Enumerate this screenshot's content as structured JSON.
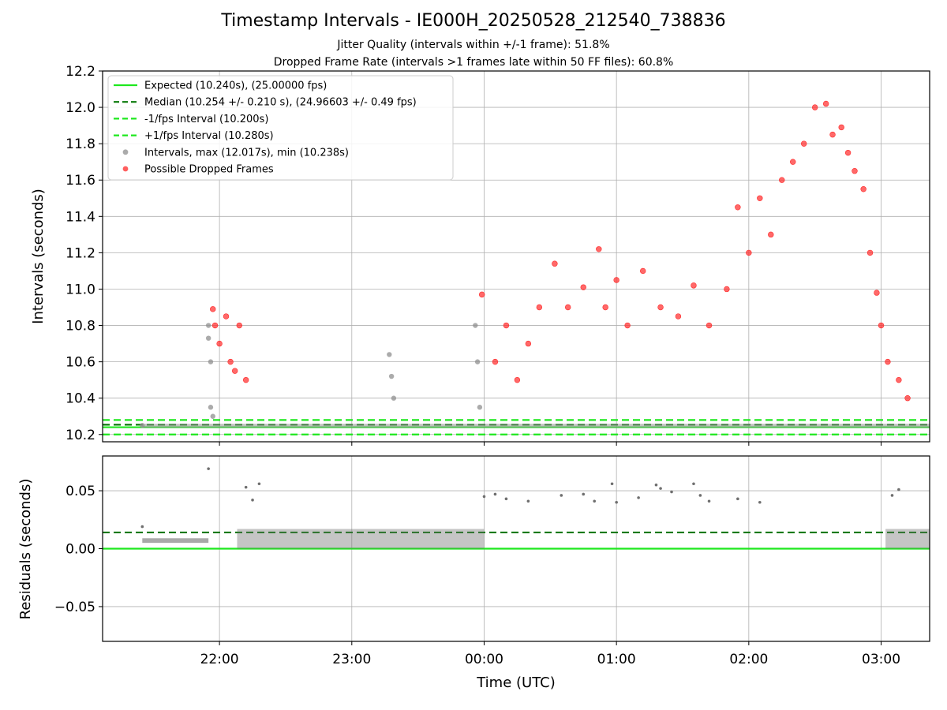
{
  "title": "Timestamp Intervals - IE000H_20250528_212540_738836",
  "subtitle_1": "Jitter Quality (intervals within +/-1 frame): 51.8%",
  "subtitle_2": "Dropped Frame Rate (intervals >1 frames late within 50 FF files): 60.8%",
  "colors": {
    "expected": "#1ee81e",
    "median": "#0a7a0a",
    "intervals": "#8f8f8f",
    "dropped": "#ff2a2a",
    "residuals": "#6f6f6f"
  },
  "chart_data": [
    {
      "type": "scatter",
      "xlabel": "",
      "ylabel": "Intervals (seconds)",
      "xlim": [
        "21:07",
        "03:22"
      ],
      "ylim": [
        10.16,
        12.2
      ],
      "yticks": [
        "10.2",
        "10.4",
        "10.6",
        "10.8",
        "11.0",
        "11.2",
        "11.4",
        "11.6",
        "11.8",
        "12.0",
        "12.2"
      ],
      "grid": true,
      "legend_position": "top-left",
      "legend": [
        "Expected (10.240s), (25.00000 fps)",
        "Median (10.254 +/- 0.210 s), (24.96603 +/- 0.49 fps)",
        "-1/fps Interval (10.200s)",
        "+1/fps Interval (10.280s)",
        "Intervals, max (12.017s), min (10.238s)",
        "Possible Dropped Frames"
      ],
      "reference_lines": [
        {
          "name": "Expected",
          "y": 10.24
        },
        {
          "name": "Median",
          "y": 10.254
        },
        {
          "name": "-1/fps Interval",
          "y": 10.2
        },
        {
          "name": "+1/fps Interval",
          "y": 10.28
        }
      ],
      "series": [
        {
          "name": "Intervals",
          "time": [
            "21:25",
            "21:55",
            "21:55",
            "21:56",
            "21:56",
            "21:57",
            "23:17",
            "23:18",
            "23:19",
            "23:56",
            "23:57",
            "23:58"
          ],
          "values": [
            10.25,
            10.8,
            10.73,
            10.6,
            10.35,
            10.3,
            10.64,
            10.52,
            10.4,
            10.8,
            10.6,
            10.35
          ]
        },
        {
          "name": "Possible Dropped Frames",
          "time": [
            "21:57",
            "21:58",
            "22:00",
            "22:03",
            "22:05",
            "22:07",
            "22:09",
            "22:12",
            "23:59",
            "00:05",
            "00:10",
            "00:15",
            "00:20",
            "00:25",
            "00:32",
            "00:38",
            "00:45",
            "00:52",
            "00:55",
            "01:00",
            "01:05",
            "01:12",
            "01:20",
            "01:28",
            "01:35",
            "01:42",
            "01:50",
            "01:55",
            "02:00",
            "02:05",
            "02:10",
            "02:15",
            "02:20",
            "02:25",
            "02:30",
            "02:35",
            "02:38",
            "02:42",
            "02:45",
            "02:48",
            "02:52",
            "02:55",
            "02:58",
            "03:00",
            "03:03",
            "03:08",
            "03:12"
          ],
          "values": [
            10.89,
            10.8,
            10.7,
            10.85,
            10.6,
            10.55,
            10.8,
            10.5,
            10.97,
            10.6,
            10.8,
            10.5,
            10.7,
            10.9,
            11.14,
            10.9,
            11.01,
            11.22,
            10.9,
            11.05,
            10.8,
            11.1,
            10.9,
            10.85,
            11.02,
            10.8,
            11.0,
            11.45,
            11.2,
            11.5,
            11.3,
            11.6,
            11.7,
            11.8,
            12.0,
            12.02,
            11.85,
            11.89,
            11.75,
            11.65,
            11.55,
            11.2,
            10.98,
            10.8,
            10.6,
            10.5,
            10.4
          ]
        }
      ]
    },
    {
      "type": "scatter",
      "xlabel": "Time (UTC)",
      "ylabel": "Residuals (seconds)",
      "xlim": [
        "21:07",
        "03:22"
      ],
      "ylim": [
        -0.08,
        0.08
      ],
      "xticks": [
        "22:00",
        "23:00",
        "00:00",
        "01:00",
        "02:00",
        "03:00"
      ],
      "yticks": [
        "−0.05",
        "0.00",
        "0.05"
      ],
      "grid": true,
      "reference_lines": [
        {
          "name": "Expected",
          "y": 0.0
        },
        {
          "name": "Median",
          "y": 0.014
        }
      ],
      "series": [
        {
          "name": "Residuals",
          "time": [
            "21:25",
            "21:55",
            "22:12",
            "22:15",
            "22:18",
            "00:00",
            "00:05",
            "00:10",
            "00:20",
            "00:35",
            "00:45",
            "00:50",
            "00:58",
            "01:00",
            "01:10",
            "01:18",
            "01:20",
            "01:25",
            "01:35",
            "01:38",
            "01:42",
            "01:55",
            "02:05",
            "03:05",
            "03:08"
          ],
          "values": [
            0.019,
            0.069,
            0.053,
            0.042,
            0.056,
            0.045,
            0.047,
            0.043,
            0.041,
            0.046,
            0.047,
            0.041,
            0.056,
            0.04,
            0.044,
            0.055,
            0.052,
            0.049,
            0.056,
            0.046,
            0.041,
            0.043,
            0.04,
            0.046,
            0.051
          ]
        }
      ]
    }
  ]
}
